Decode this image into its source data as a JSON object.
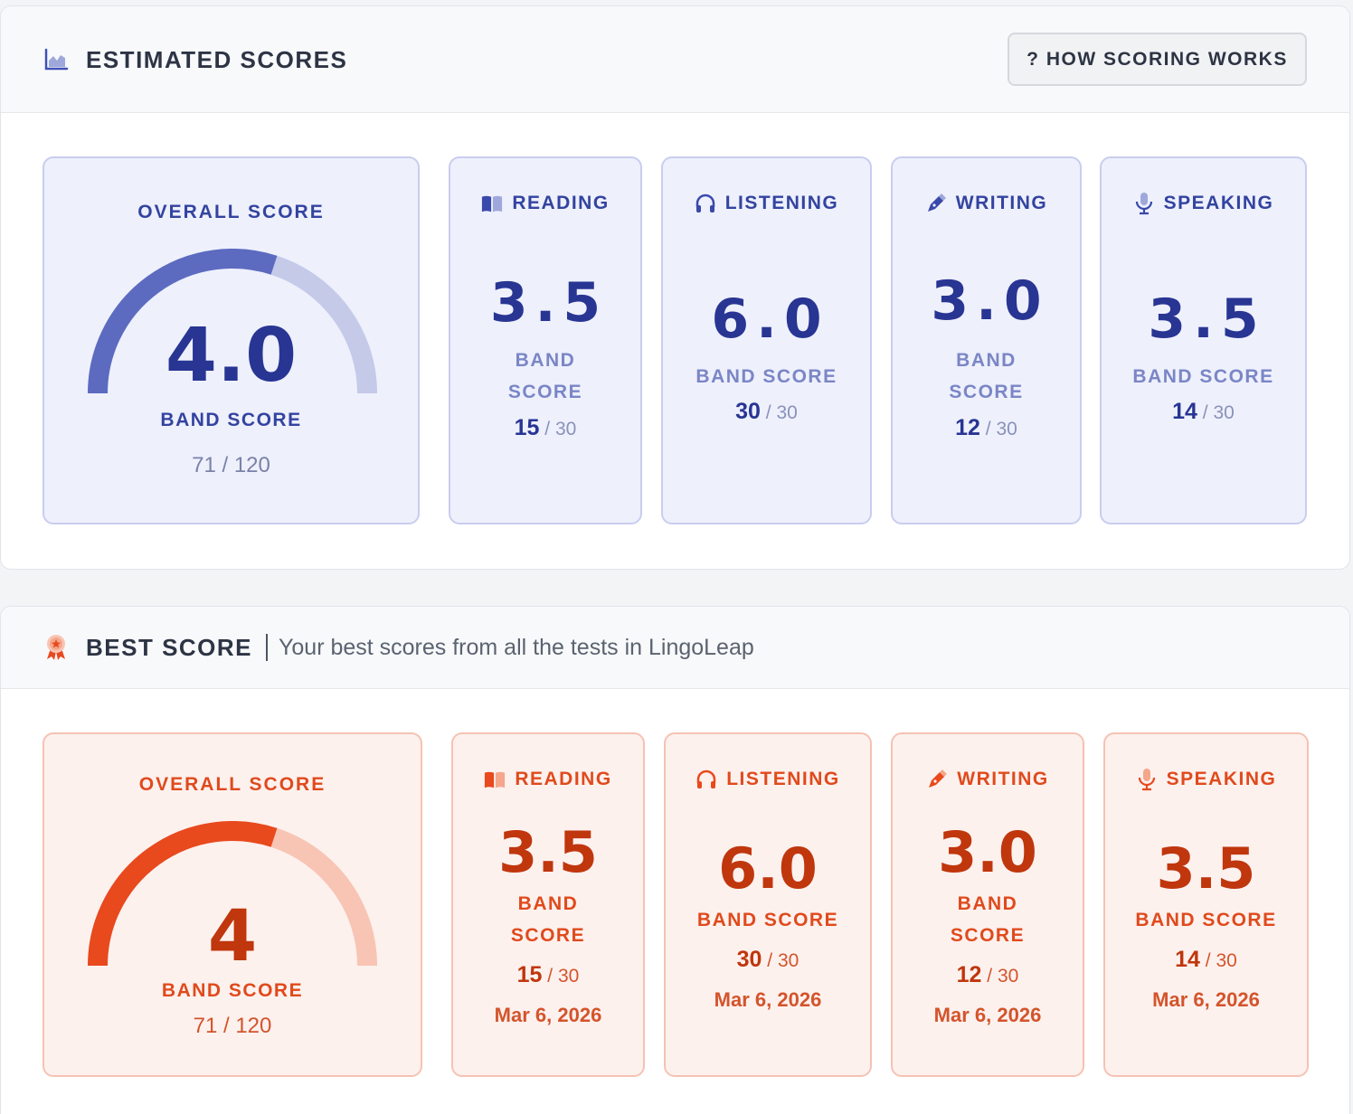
{
  "colors": {
    "estimated_accent": "#283593",
    "estimated_arc_fill": "#5c6bc0",
    "estimated_arc_track": "#c5cae9",
    "best_accent": "#c0360d",
    "best_arc_fill": "#e8491d",
    "best_arc_track": "#f8c5b4"
  },
  "estimated": {
    "header_icon": "area-chart-icon",
    "title": "ESTIMATED SCORES",
    "how_button": "? HOW SCORING WORKS",
    "overall": {
      "title": "OVERALL SCORE",
      "value": "4.0",
      "band_label": "BAND SCORE",
      "total": "71 / 120",
      "gauge_fraction": 0.6
    },
    "sections": [
      {
        "name": "READING",
        "icon": "book-icon",
        "score": "3.5",
        "band_line1": "BAND",
        "band_line2": "SCORE",
        "raw": "15",
        "sep": "/",
        "max": "30"
      },
      {
        "name": "LISTENING",
        "icon": "headphones-icon",
        "score": "6.0",
        "band_line1": "BAND SCORE",
        "band_line2": "",
        "raw": "30",
        "sep": "/",
        "max": "30"
      },
      {
        "name": "WRITING",
        "icon": "pen-icon",
        "score": "3.0",
        "band_line1": "BAND",
        "band_line2": "SCORE",
        "raw": "12",
        "sep": "/",
        "max": "30"
      },
      {
        "name": "SPEAKING",
        "icon": "microphone-icon",
        "score": "3.5",
        "band_line1": "BAND SCORE",
        "band_line2": "",
        "raw": "14",
        "sep": "/",
        "max": "30"
      }
    ]
  },
  "best": {
    "header_icon": "award-ribbon-icon",
    "title": "BEST SCORE",
    "subtitle": "Your best scores from all the tests in LingoLeap",
    "overall": {
      "title": "OVERALL SCORE",
      "value": "4",
      "band_label": "BAND SCORE",
      "total": "71 / 120",
      "gauge_fraction": 0.6
    },
    "sections": [
      {
        "name": "READING",
        "icon": "book-icon",
        "score": "3.5",
        "band_line1": "BAND",
        "band_line2": "SCORE",
        "raw": "15",
        "sep": "/",
        "max": "30",
        "date": "Mar 6, 2026"
      },
      {
        "name": "LISTENING",
        "icon": "headphones-icon",
        "score": "6.0",
        "band_line1": "BAND SCORE",
        "band_line2": "",
        "raw": "30",
        "sep": "/",
        "max": "30",
        "date": "Mar 6, 2026"
      },
      {
        "name": "WRITING",
        "icon": "pen-icon",
        "score": "3.0",
        "band_line1": "BAND",
        "band_line2": "SCORE",
        "raw": "12",
        "sep": "/",
        "max": "30",
        "date": "Mar 6, 2026"
      },
      {
        "name": "SPEAKING",
        "icon": "microphone-icon",
        "score": "3.5",
        "band_line1": "BAND SCORE",
        "band_line2": "",
        "raw": "14",
        "sep": "/",
        "max": "30",
        "date": "Mar 6, 2026"
      }
    ]
  }
}
